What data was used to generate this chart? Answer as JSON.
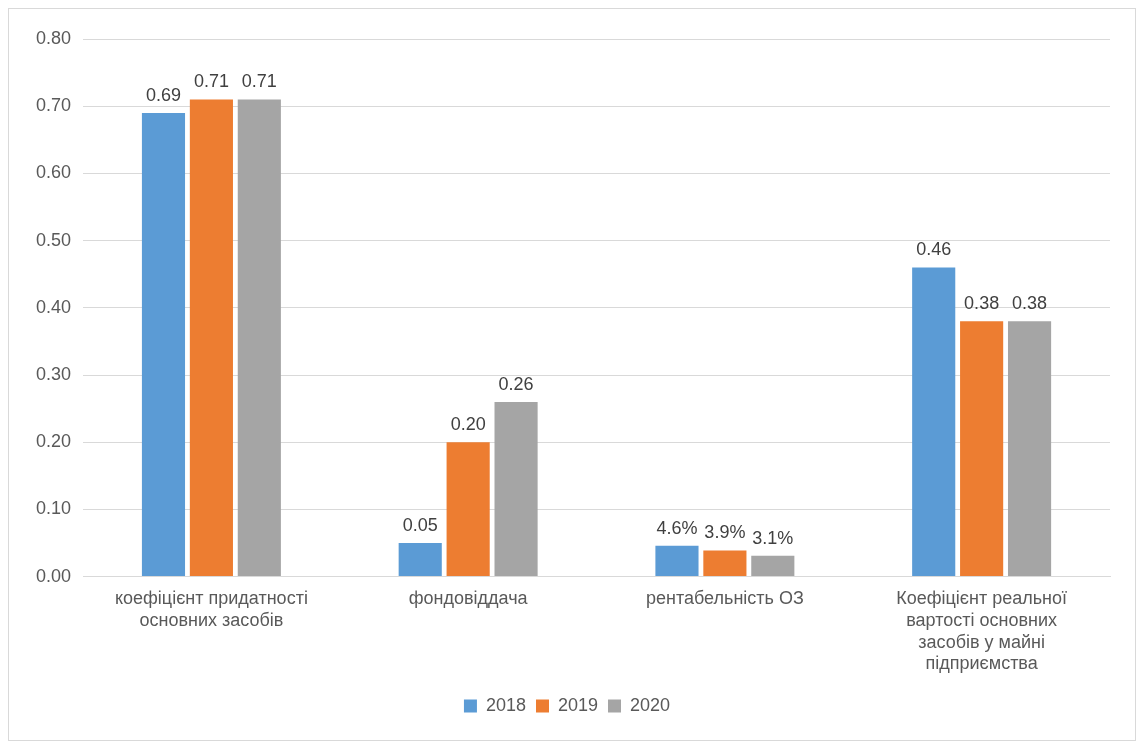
{
  "chart_data": {
    "type": "bar",
    "categories": [
      "коефіцієнт придатності основних засобів",
      "фондовіддача",
      "рентабельність ОЗ",
      "Коефіцієнт реальної вартості основних засобів у майні підприємства"
    ],
    "series": [
      {
        "name": "2018",
        "color": "#5b9bd5",
        "values": [
          0.69,
          0.05,
          0.046,
          0.46
        ],
        "value_labels": [
          "0.69",
          "0.05",
          "4.6%",
          "0.46"
        ]
      },
      {
        "name": "2019",
        "color": "#ed7d31",
        "values": [
          0.71,
          0.2,
          0.039,
          0.38
        ],
        "value_labels": [
          "0.71",
          "0.20",
          "3.9%",
          "0.38"
        ]
      },
      {
        "name": "2020",
        "color": "#a5a5a5",
        "values": [
          0.71,
          0.26,
          0.031,
          0.38
        ],
        "value_labels": [
          "0.71",
          "0.26",
          "3.1%",
          "0.38"
        ]
      }
    ],
    "ylim": [
      0,
      0.8
    ],
    "yticks": [
      {
        "value": 0,
        "label": "0.00"
      },
      {
        "value": 0.1,
        "label": "0.10"
      },
      {
        "value": 0.2,
        "label": "0.20"
      },
      {
        "value": 0.3,
        "label": "0.30"
      },
      {
        "value": 0.4,
        "label": "0.40"
      },
      {
        "value": 0.5,
        "label": "0.50"
      },
      {
        "value": 0.6,
        "label": "0.60"
      },
      {
        "value": 0.7,
        "label": "0.70"
      },
      {
        "value": 0.8,
        "label": "0.80"
      }
    ],
    "grid": "y",
    "legend": "bottom"
  }
}
